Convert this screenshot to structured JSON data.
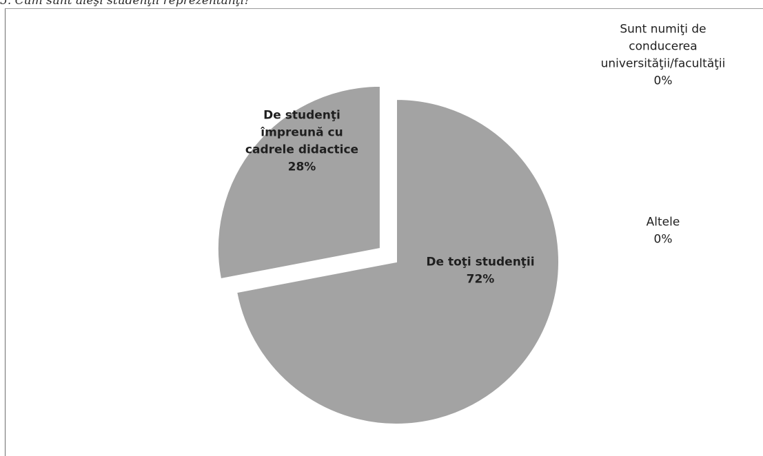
{
  "page": {
    "heading": "5.   Cum sunt aleşi studenţii reprezentanţi?"
  },
  "chart_data": {
    "type": "pie",
    "title": "",
    "slices": [
      {
        "label_lines": [
          "De toţi studenţii"
        ],
        "percent_label": "72%",
        "value": 72,
        "color": "#a3a3a3",
        "exploded": false
      },
      {
        "label_lines": [
          "De studenţi",
          "împreună cu",
          "cadrele didactice"
        ],
        "percent_label": "28%",
        "value": 28,
        "color": "#a3a3a3",
        "exploded": true
      },
      {
        "label_lines": [
          "Sunt numiţi de",
          "conducerea",
          "universităţii/facultăţii"
        ],
        "percent_label": "0%",
        "value": 0,
        "color": "#a3a3a3",
        "exploded": false
      },
      {
        "label_lines": [
          "Altele"
        ],
        "percent_label": "0%",
        "value": 0,
        "color": "#a3a3a3",
        "exploded": false
      }
    ],
    "legend": "none",
    "data_labels": "category and percent"
  }
}
